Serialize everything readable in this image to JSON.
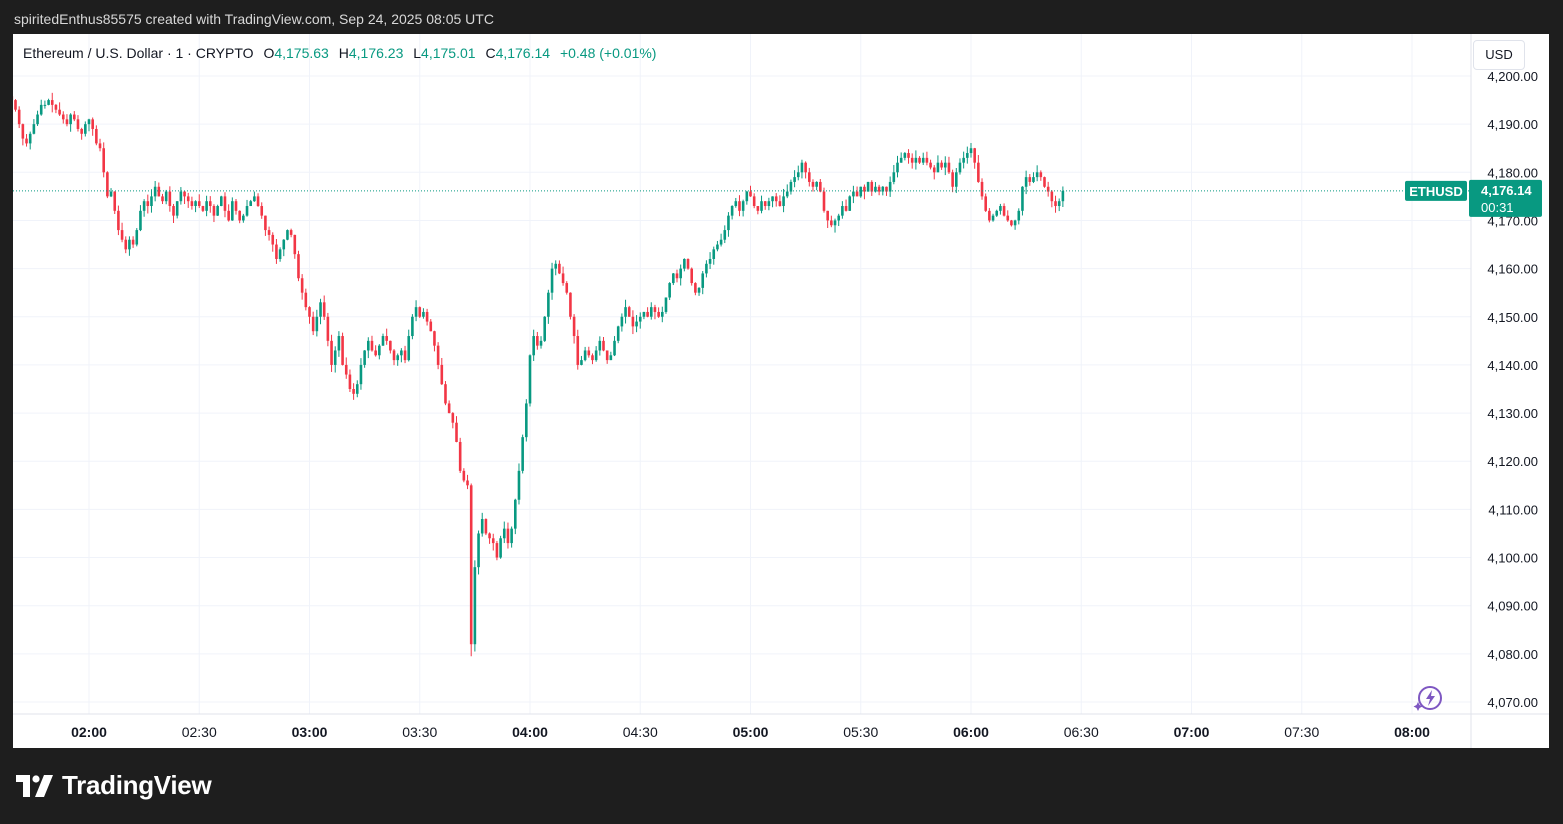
{
  "header": {
    "credit": "spiritedEnthus85575 created with TradingView.com, Sep 24, 2025 08:05 UTC"
  },
  "legend": {
    "symbol_line": "Ethereum / U.S. Dollar · 1 · CRYPTO",
    "o_label": "O",
    "o_value": "4,175.63",
    "h_label": "H",
    "h_value": "4,176.23",
    "l_label": "L",
    "l_value": "4,175.01",
    "c_label": "C",
    "c_value": "4,176.14",
    "change": "+0.48 (+0.01%)"
  },
  "currency_label": "USD",
  "price_tag": {
    "symbol": "ETHUSD",
    "price": "4,176.14",
    "countdown": "00:31"
  },
  "brand": {
    "name": "TradingView",
    "logo_icon": "tradingview-logo-icon"
  },
  "colors": {
    "up": "#089981",
    "down": "#f23645",
    "tag": "#089981",
    "accent": "#7e57c2"
  },
  "chart_data": {
    "type": "candlestick",
    "symbol": "ETHUSD",
    "interval": "1",
    "ylim": [
      4066,
      4203
    ],
    "y_ticks": [
      4070,
      4080,
      4090,
      4100,
      4110,
      4120,
      4130,
      4140,
      4150,
      4160,
      4170,
      4180,
      4190,
      4200
    ],
    "y_tick_labels": [
      "4,070.00",
      "4,080.00",
      "4,090.00",
      "4,100.00",
      "4,110.00",
      "4,120.00",
      "4,130.00",
      "4,140.00",
      "4,150.00",
      "4,160.00",
      "4,170.00",
      "4,180.00",
      "4,190.00",
      "4,200.00"
    ],
    "x_ticks": [
      {
        "label": "02:00",
        "minute": 120,
        "bold": true
      },
      {
        "label": "02:30",
        "minute": 150,
        "bold": false
      },
      {
        "label": "03:00",
        "minute": 180,
        "bold": true
      },
      {
        "label": "03:30",
        "minute": 210,
        "bold": false
      },
      {
        "label": "04:00",
        "minute": 240,
        "bold": true
      },
      {
        "label": "04:30",
        "minute": 270,
        "bold": false
      },
      {
        "label": "05:00",
        "minute": 300,
        "bold": true
      },
      {
        "label": "05:30",
        "minute": 330,
        "bold": false
      },
      {
        "label": "06:00",
        "minute": 360,
        "bold": true
      },
      {
        "label": "06:30",
        "minute": 390,
        "bold": false
      },
      {
        "label": "07:00",
        "minute": 420,
        "bold": true
      },
      {
        "label": "07:30",
        "minute": 450,
        "bold": false
      },
      {
        "label": "08:00",
        "minute": 480,
        "bold": true
      }
    ],
    "start_minute": 99,
    "last_price": 4176.14,
    "closes": [
      4195,
      4193,
      4190,
      4187,
      4186,
      4188,
      4190,
      4192,
      4194,
      4194,
      4195,
      4194,
      4193,
      4192,
      4191,
      4190,
      4192,
      4191,
      4189,
      4188,
      4190,
      4191,
      4189,
      4186,
      4185,
      4180,
      4175,
      4176,
      4172,
      4168,
      4166,
      4164,
      4166,
      4165,
      4168,
      4172,
      4174,
      4173,
      4175,
      4177,
      4175,
      4174,
      4176,
      4173,
      4171,
      4174,
      4176,
      4175,
      4174,
      4173,
      4174,
      4173,
      4172,
      4174,
      4173,
      4171,
      4173,
      4175,
      4172,
      4170,
      4174,
      4172,
      4170,
      4171,
      4173,
      4174,
      4175,
      4173,
      4171,
      4168,
      4167,
      4165,
      4162,
      4164,
      4166,
      4168,
      4167,
      4163,
      4158,
      4155,
      4152,
      4150,
      4147,
      4150,
      4153,
      4150,
      4145,
      4140,
      4143,
      4146,
      4140,
      4138,
      4135,
      4134,
      4136,
      4140,
      4143,
      4145,
      4143,
      4142,
      4144,
      4146,
      4145,
      4143,
      4141,
      4142,
      4143,
      4141,
      4146,
      4150,
      4152,
      4150,
      4151,
      4149,
      4147,
      4144,
      4140,
      4136,
      4132,
      4130,
      4128,
      4124,
      4118,
      4116,
      4115,
      4082,
      4098,
      4105,
      4108,
      4105,
      4104,
      4103,
      4100,
      4104,
      4106,
      4103,
      4106,
      4112,
      4118,
      4125,
      4132,
      4142,
      4146,
      4144,
      4145,
      4150,
      4155,
      4160,
      4161,
      4159,
      4157,
      4155,
      4150,
      4146,
      4140,
      4141,
      4143,
      4142,
      4141,
      4143,
      4145,
      4143,
      4141,
      4142,
      4145,
      4148,
      4150,
      4152,
      4150,
      4148,
      4149,
      4150,
      4151,
      4150,
      4152,
      4151,
      4150,
      4151,
      4154,
      4157,
      4159,
      4158,
      4160,
      4162,
      4160,
      4157,
      4155,
      4156,
      4159,
      4161,
      4162,
      4164,
      4165,
      4166,
      4168,
      4171,
      4173,
      4174,
      4172,
      4174,
      4176,
      4175,
      4173,
      4172,
      4174,
      4173,
      4174,
      4175,
      4174,
      4173,
      4175,
      4176,
      4178,
      4179,
      4180,
      4182,
      4180,
      4178,
      4177,
      4178,
      4176,
      4172,
      4170,
      4169,
      4170,
      4171,
      4173,
      4172,
      4175,
      4176,
      4175,
      4177,
      4176,
      4178,
      4176,
      4177,
      4176,
      4177,
      4176,
      4178,
      4180,
      4182,
      4183,
      4184,
      4183,
      4182,
      4183,
      4182,
      4183,
      4182,
      4181,
      4180,
      4182,
      4181,
      4182,
      4180,
      4177,
      4180,
      4182,
      4183,
      4184,
      4185,
      4182,
      4178,
      4175,
      4172,
      4170,
      4171,
      4172,
      4173,
      4171,
      4170,
      4169,
      4170,
      4172,
      4177,
      4179,
      4178,
      4179,
      4180,
      4179,
      4177,
      4176,
      4174,
      4173,
      4174,
      4176.14
    ]
  }
}
